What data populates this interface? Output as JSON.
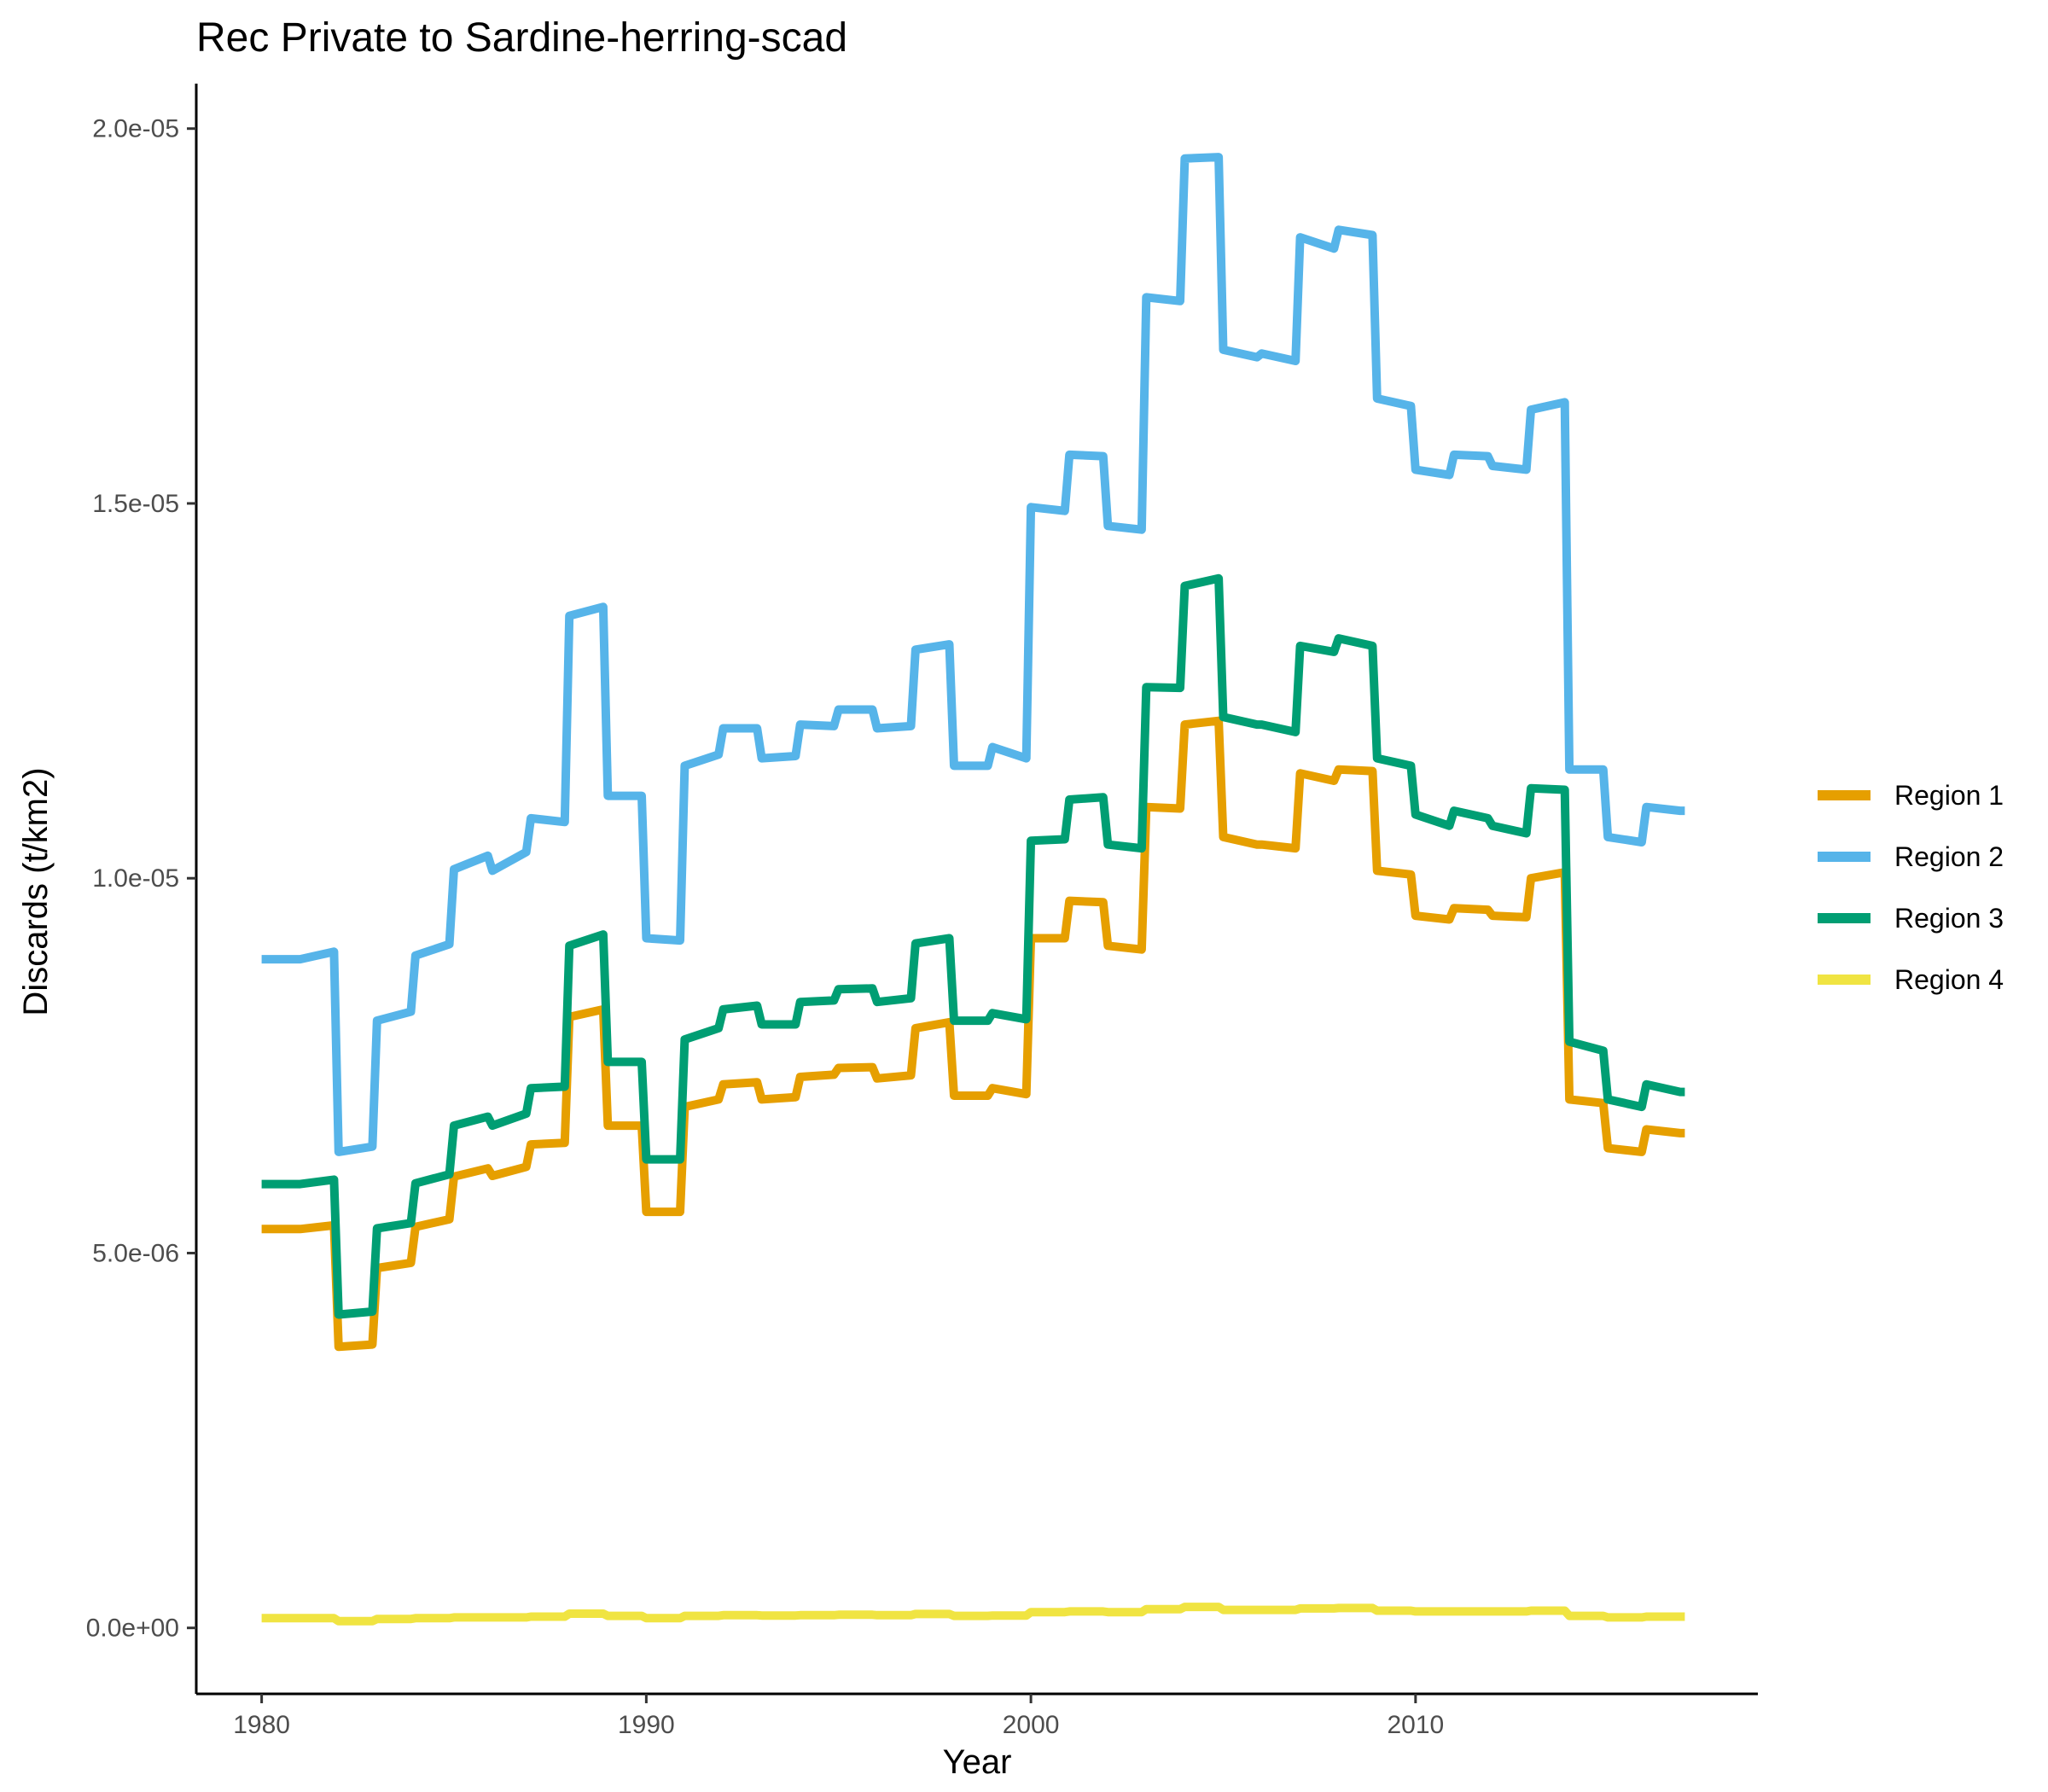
{
  "chart_data": {
    "type": "line",
    "title": "Rec Private to Sardine-herring-scad",
    "xlabel": "Year",
    "ylabel": "Discards (t/km2)",
    "xlim": [
      1978.3,
      2018.9
    ],
    "ylim": [
      -8.8e-07,
      2.06e-05
    ],
    "x_ticks": [
      1980,
      1990,
      2000,
      2010
    ],
    "x_tick_labels": [
      "1980",
      "1990",
      "2000",
      "2010"
    ],
    "y_ticks": [
      0,
      5e-06,
      1e-05,
      1.5e-05,
      2e-05
    ],
    "y_tick_labels": [
      "0.0e+00",
      "5.0e-06",
      "1.0e-05",
      "1.5e-05",
      "2.0e-05"
    ],
    "grid": false,
    "legend_position": "right",
    "years": [
      1980,
      1981,
      1982,
      1983,
      1984,
      1985,
      1986,
      1987,
      1988,
      1989,
      1990,
      1991,
      1992,
      1993,
      1994,
      1995,
      1996,
      1997,
      1998,
      1999,
      2000,
      2001,
      2002,
      2003,
      2004,
      2005,
      2006,
      2007,
      2008,
      2009,
      2010,
      2011,
      2012,
      2013,
      2014,
      2015,
      2016,
      2017
    ],
    "series": [
      {
        "name": "Region 1",
        "color": "#E69F00",
        "annual_start": [
          5.32e-06,
          5.32e-06,
          3.75e-06,
          4.8e-06,
          5.35e-06,
          6.02e-06,
          6.03e-06,
          6.45e-06,
          8.15e-06,
          6.7e-06,
          5.55e-06,
          6.95e-06,
          7.25e-06,
          7.05e-06,
          7.35e-06,
          7.47e-06,
          7.33e-06,
          8e-06,
          7.1e-06,
          7.2e-06,
          9.2e-06,
          9.7e-06,
          9.1e-06,
          1.095e-05,
          1.205e-05,
          1.055e-05,
          1.045e-05,
          1.14e-05,
          1.145e-05,
          1.01e-05,
          9.5e-06,
          9.6e-06,
          9.5e-06,
          1e-05,
          7.05e-06,
          6.4e-06,
          6.65e-06,
          6.6e-06
        ],
        "annual_end": [
          5.32e-06,
          5.37e-06,
          3.78e-06,
          4.87e-06,
          5.45e-06,
          6.13e-06,
          6.15e-06,
          6.47e-06,
          8.25e-06,
          6.7e-06,
          5.55e-06,
          7.05e-06,
          7.28e-06,
          7.08e-06,
          7.38e-06,
          7.48e-06,
          7.37e-06,
          8.08e-06,
          7.1e-06,
          7.12e-06,
          9.2e-06,
          9.68e-06,
          9.05e-06,
          1.093e-05,
          1.21e-05,
          1.045e-05,
          1.04e-05,
          1.13e-05,
          1.143e-05,
          1.005e-05,
          9.45e-06,
          9.58e-06,
          9.48e-06,
          1.008e-05,
          7e-06,
          6.35e-06,
          6.6e-06,
          6.6e-06
        ]
      },
      {
        "name": "Region 2",
        "color": "#56B4E9",
        "annual_start": [
          8.92e-06,
          8.92e-06,
          6.35e-06,
          8.1e-06,
          8.97e-06,
          1.012e-05,
          1.01e-05,
          1.08e-05,
          1.35e-05,
          1.11e-05,
          9.2e-06,
          1.15e-05,
          1.2e-05,
          1.16e-05,
          1.205e-05,
          1.225e-05,
          1.2e-05,
          1.305e-05,
          1.15e-05,
          1.175e-05,
          1.495e-05,
          1.565e-05,
          1.47e-05,
          1.775e-05,
          1.96e-05,
          1.705e-05,
          1.7e-05,
          1.855e-05,
          1.865e-05,
          1.64e-05,
          1.545e-05,
          1.565e-05,
          1.55e-05,
          1.625e-05,
          1.145e-05,
          1.055e-05,
          1.095e-05,
          1.09e-05
        ],
        "annual_end": [
          8.92e-06,
          9.02e-06,
          6.42e-06,
          8.22e-06,
          9.12e-06,
          1.03e-05,
          1.035e-05,
          1.075e-05,
          1.362e-05,
          1.11e-05,
          9.17e-06,
          1.165e-05,
          1.2e-05,
          1.163e-05,
          1.203e-05,
          1.225e-05,
          1.203e-05,
          1.312e-05,
          1.15e-05,
          1.16e-05,
          1.49e-05,
          1.563e-05,
          1.465e-05,
          1.77e-05,
          1.962e-05,
          1.695e-05,
          1.69e-05,
          1.84e-05,
          1.858e-05,
          1.63e-05,
          1.538e-05,
          1.563e-05,
          1.545e-05,
          1.635e-05,
          1.145e-05,
          1.048e-05,
          1.09e-05,
          1.09e-05
        ]
      },
      {
        "name": "Region 3",
        "color": "#009E73",
        "annual_start": [
          5.92e-06,
          5.92e-06,
          4.18e-06,
          5.33e-06,
          5.93e-06,
          6.7e-06,
          6.7e-06,
          7.2e-06,
          9.1e-06,
          7.55e-06,
          6.25e-06,
          7.85e-06,
          8.25e-06,
          8.05e-06,
          8.35e-06,
          8.52e-06,
          8.35e-06,
          9.13e-06,
          8.1e-06,
          8.2e-06,
          1.05e-05,
          1.105e-05,
          1.045e-05,
          1.255e-05,
          1.39e-05,
          1.215e-05,
          1.205e-05,
          1.31e-05,
          1.32e-05,
          1.16e-05,
          1.085e-05,
          1.09e-05,
          1.07e-05,
          1.12e-05,
          7.82e-06,
          7.05e-06,
          7.25e-06,
          7.15e-06
        ],
        "annual_end": [
          5.92e-06,
          5.98e-06,
          4.22e-06,
          5.4e-06,
          6.05e-06,
          6.82e-06,
          6.86e-06,
          7.22e-06,
          9.25e-06,
          7.55e-06,
          6.25e-06,
          8e-06,
          8.3e-06,
          8.05e-06,
          8.37e-06,
          8.53e-06,
          8.4e-06,
          9.2e-06,
          8.1e-06,
          8.12e-06,
          1.052e-05,
          1.108e-05,
          1.04e-05,
          1.254e-05,
          1.4e-05,
          1.205e-05,
          1.195e-05,
          1.302e-05,
          1.31e-05,
          1.15e-05,
          1.07e-05,
          1.08e-05,
          1.06e-05,
          1.118e-05,
          7.7e-06,
          6.95e-06,
          7.15e-06,
          7.15e-06
        ]
      },
      {
        "name": "Region 4",
        "color": "#F0E442",
        "annual_start": [
          1.3e-07,
          1.3e-07,
          9e-08,
          1.2e-07,
          1.3e-07,
          1.4e-07,
          1.4e-07,
          1.5e-07,
          1.9e-07,
          1.6e-07,
          1.3e-07,
          1.6e-07,
          1.7e-07,
          1.65e-07,
          1.7e-07,
          1.75e-07,
          1.7e-07,
          1.85e-07,
          1.6e-07,
          1.65e-07,
          2.1e-07,
          2.2e-07,
          2.1e-07,
          2.5e-07,
          2.8e-07,
          2.4e-07,
          2.4e-07,
          2.6e-07,
          2.65e-07,
          2.3e-07,
          2.2e-07,
          2.2e-07,
          2.2e-07,
          2.3e-07,
          1.6e-07,
          1.4e-07,
          1.5e-07,
          1.5e-07
        ],
        "annual_end": [
          1.3e-07,
          1.3e-07,
          9e-08,
          1.2e-07,
          1.3e-07,
          1.4e-07,
          1.4e-07,
          1.5e-07,
          1.9e-07,
          1.6e-07,
          1.3e-07,
          1.6e-07,
          1.7e-07,
          1.65e-07,
          1.7e-07,
          1.75e-07,
          1.7e-07,
          1.85e-07,
          1.6e-07,
          1.65e-07,
          2.1e-07,
          2.2e-07,
          2.1e-07,
          2.5e-07,
          2.8e-07,
          2.4e-07,
          2.4e-07,
          2.6e-07,
          2.65e-07,
          2.3e-07,
          2.2e-07,
          2.2e-07,
          2.2e-07,
          2.3e-07,
          1.6e-07,
          1.4e-07,
          1.5e-07,
          1.5e-07
        ]
      }
    ]
  }
}
